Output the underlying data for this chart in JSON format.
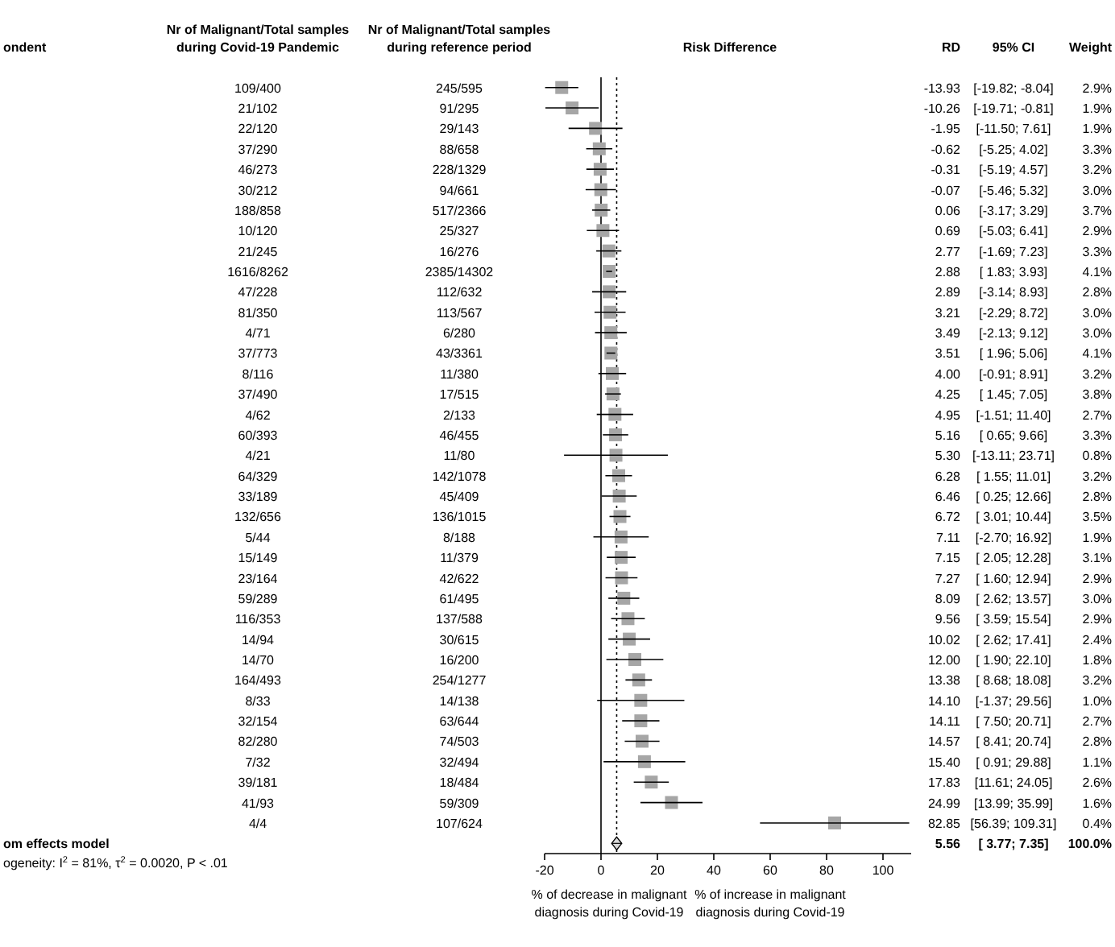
{
  "chart_data": [
    {
      "type": "other",
      "title": "ondent",
      "annotations": [
        "om effects model",
        "ogeneity: I$^{2}$ = 81%, τ$^{2}$ = 0.0020, P < .01"
      ]
    },
    {
      "type": "other",
      "title": "Nr of Malignant/Total samples during Covid-19 Pandemic",
      "annotations": [
        "109/400",
        "21/102",
        "22/120",
        "37/290",
        "46/273",
        "30/212",
        "188/858",
        "10/120",
        "21/245",
        "1616/8262",
        "47/228",
        "81/350",
        "4/71",
        "37/773",
        "8/116",
        "37/490",
        "4/62",
        "60/393",
        "4/21",
        "64/329",
        "33/189",
        "132/656",
        "5/44",
        "15/149",
        "23/164",
        "59/289",
        "116/353",
        "14/94",
        "14/70",
        "164/493",
        "8/33",
        "32/154",
        "82/280",
        "7/32",
        "39/181",
        "41/93",
        "4/4"
      ]
    },
    {
      "type": "other",
      "title": "Nr of Malignant/Total samples during reference period",
      "annotations": [
        "245/595",
        "91/295",
        "29/143",
        "88/658",
        "228/1329",
        "94/661",
        "517/2366",
        "25/327",
        "16/276",
        "2385/14302",
        "112/632",
        "113/567",
        "6/280",
        "43/3361",
        "11/380",
        "17/515",
        "2/133",
        "46/455",
        "11/80",
        "142/1078",
        "45/409",
        "136/1015",
        "8/188",
        "11/379",
        "42/622",
        "61/495",
        "137/588",
        "30/615",
        "16/200",
        "254/1277",
        "14/138",
        "63/644",
        "74/503",
        "32/494",
        "18/484",
        "59/309",
        "107/624"
      ]
    },
    {
      "type": "scatter",
      "title": "Risk Difference",
      "orientation": "horizontal",
      "categories": [
        null,
        null,
        null,
        null,
        null,
        null,
        null,
        null,
        null,
        null,
        null,
        null,
        null,
        null,
        null,
        null,
        null,
        null,
        null,
        null,
        null,
        null,
        null,
        null,
        null,
        null,
        null,
        null,
        null,
        null,
        null,
        null,
        null,
        null,
        null,
        null,
        null,
        null
      ],
      "series": [
        {
          "color": "#a6a6a6",
          "marker": "square",
          "values": [
            -13.93,
            -10.26,
            -1.95,
            -0.62,
            -0.31,
            -0.07,
            0.06,
            0.69,
            2.77,
            2.88,
            2.89,
            3.21,
            3.49,
            3.51,
            4.0,
            4.25,
            4.95,
            5.16,
            5.3,
            6.28,
            6.46,
            6.72,
            7.11,
            7.15,
            7.27,
            8.09,
            9.56,
            10.02,
            12.0,
            13.38,
            14.1,
            14.11,
            14.57,
            15.4,
            17.83,
            24.99,
            82.85,
            null
          ],
          "errors": [
            [
              -19.82,
              -8.04
            ],
            [
              -19.71,
              -0.81
            ],
            [
              -11.5,
              7.61
            ],
            [
              -5.25,
              4.02
            ],
            [
              -5.19,
              4.57
            ],
            [
              -5.46,
              5.32
            ],
            [
              -3.17,
              3.29
            ],
            [
              -5.03,
              6.41
            ],
            [
              -1.69,
              7.23
            ],
            [
              1.83,
              3.93
            ],
            [
              -3.14,
              8.93
            ],
            [
              -2.29,
              8.72
            ],
            [
              -2.13,
              9.12
            ],
            [
              1.96,
              5.06
            ],
            [
              -0.91,
              8.91
            ],
            [
              1.45,
              7.05
            ],
            [
              -1.51,
              11.4
            ],
            [
              0.65,
              9.66
            ],
            [
              -13.11,
              23.71
            ],
            [
              1.55,
              11.01
            ],
            [
              0.25,
              12.66
            ],
            [
              3.01,
              10.44
            ],
            [
              -2.7,
              16.92
            ],
            [
              2.05,
              12.28
            ],
            [
              1.6,
              12.94
            ],
            [
              2.62,
              13.57
            ],
            [
              3.59,
              15.54
            ],
            [
              2.62,
              17.41
            ],
            [
              1.9,
              22.1
            ],
            [
              8.68,
              18.08
            ],
            [
              -1.37,
              29.56
            ],
            [
              7.5,
              20.71
            ],
            [
              8.41,
              20.74
            ],
            [
              0.91,
              29.88
            ],
            [
              11.61,
              24.05
            ],
            [
              13.99,
              35.99
            ],
            [
              56.39,
              109.31
            ],
            null
          ]
        },
        {
          "color": "#d9d9d9",
          "marker": "diamond",
          "values": [
            null,
            null,
            null,
            null,
            null,
            null,
            null,
            null,
            null,
            null,
            null,
            null,
            null,
            null,
            null,
            null,
            null,
            null,
            null,
            null,
            null,
            null,
            null,
            null,
            null,
            null,
            null,
            null,
            null,
            null,
            null,
            null,
            null,
            null,
            null,
            null,
            null,
            5.56
          ],
          "errors": [
            null,
            null,
            null,
            null,
            null,
            null,
            null,
            null,
            null,
            null,
            null,
            null,
            null,
            null,
            null,
            null,
            null,
            null,
            null,
            null,
            null,
            null,
            null,
            null,
            null,
            null,
            null,
            null,
            null,
            null,
            null,
            null,
            null,
            null,
            null,
            null,
            null,
            [
              3.77,
              7.35
            ]
          ]
        }
      ],
      "xlim": [
        -20,
        110
      ],
      "xticks": [
        -20,
        0,
        20,
        40,
        60,
        80,
        100
      ],
      "tick_labels": "x",
      "ref_lines": [
        {
          "axis": "x",
          "value": 0,
          "line_style": "solid"
        },
        {
          "axis": "x",
          "value": 5.56,
          "line_style": "dotted"
        }
      ],
      "annotations": [
        "% of decrease in malignant diagnosis during Covid-19",
        "% of increase in malignant diagnosis during Covid-19"
      ]
    },
    {
      "type": "other",
      "title": "RD",
      "annotations": [
        "-13.93",
        "-10.26",
        "-1.95",
        "-0.62",
        "-0.31",
        "-0.07",
        "0.06",
        "0.69",
        "2.77",
        "2.88",
        "2.89",
        "3.21",
        "3.49",
        "3.51",
        "4.00",
        "4.25",
        "4.95",
        "5.16",
        "5.30",
        "6.28",
        "6.46",
        "6.72",
        "7.11",
        "7.15",
        "7.27",
        "8.09",
        "9.56",
        "10.02",
        "12.00",
        "13.38",
        "14.10",
        "14.11",
        "14.57",
        "15.40",
        "17.83",
        "24.99",
        "82.85",
        "5.56"
      ]
    },
    {
      "type": "other",
      "title": "95% CI",
      "annotations": [
        "[-19.82; -8.04]",
        "[-19.71; -0.81]",
        "[-11.50; 7.61]",
        "[-5.25; 4.02]",
        "[-5.19; 4.57]",
        "[-5.46; 5.32]",
        "[-3.17; 3.29]",
        "[-5.03; 6.41]",
        "[-1.69; 7.23]",
        "[ 1.83; 3.93]",
        "[-3.14; 8.93]",
        "[-2.29; 8.72]",
        "[-2.13; 9.12]",
        "[ 1.96; 5.06]",
        "[-0.91; 8.91]",
        "[ 1.45; 7.05]",
        "[-1.51; 11.40]",
        "[ 0.65; 9.66]",
        "[-13.11; 23.71]",
        "[ 1.55; 11.01]",
        "[ 0.25; 12.66]",
        "[ 3.01; 10.44]",
        "[-2.70; 16.92]",
        "[ 2.05; 12.28]",
        "[ 1.60; 12.94]",
        "[ 2.62; 13.57]",
        "[ 3.59; 15.54]",
        "[ 2.62; 17.41]",
        "[ 1.90; 22.10]",
        "[ 8.68; 18.08]",
        "[-1.37; 29.56]",
        "[ 7.50; 20.71]",
        "[ 8.41; 20.74]",
        "[ 0.91; 29.88]",
        "[11.61; 24.05]",
        "[13.99; 35.99]",
        "[56.39; 109.31]",
        "[ 3.77; 7.35]"
      ]
    },
    {
      "type": "other",
      "title": "Weight",
      "annotations": [
        "2.9%",
        "1.9%",
        "1.9%",
        "3.3%",
        "3.2%",
        "3.0%",
        "3.7%",
        "2.9%",
        "3.3%",
        "4.1%",
        "2.8%",
        "3.0%",
        "3.0%",
        "4.1%",
        "3.2%",
        "3.8%",
        "2.7%",
        "3.3%",
        "0.8%",
        "3.2%",
        "2.8%",
        "3.5%",
        "1.9%",
        "3.1%",
        "2.9%",
        "3.0%",
        "2.9%",
        "2.4%",
        "1.8%",
        "3.2%",
        "1.0%",
        "2.7%",
        "2.8%",
        "1.1%",
        "2.6%",
        "1.6%",
        "0.4%",
        "100.0%"
      ]
    }
  ]
}
